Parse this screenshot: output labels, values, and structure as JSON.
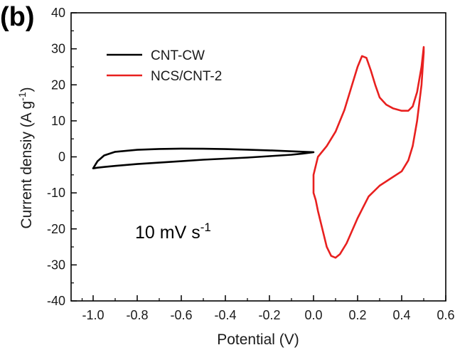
{
  "panel_label": "(b)",
  "chart_data": {
    "type": "line",
    "xlabel": "Potential (V)",
    "ylabel": {
      "main": "Current densiy (A g",
      "sup": "-1",
      "end": ")"
    },
    "xlim": [
      -1.1,
      0.6
    ],
    "ylim": [
      -40,
      40
    ],
    "x_ticks": [
      -1.0,
      -0.8,
      -0.6,
      -0.4,
      -0.2,
      0.0,
      0.2,
      0.4,
      0.6
    ],
    "x_tick_labels": [
      "-1.0",
      "-0.8",
      "-0.6",
      "-0.4",
      "-0.2",
      "0.0",
      "0.2",
      "0.4",
      "0.6"
    ],
    "y_ticks": [
      -40,
      -30,
      -20,
      -10,
      0,
      10,
      20,
      30,
      40
    ],
    "y_tick_labels": [
      "-40",
      "-30",
      "-20",
      "-10",
      "0",
      "10",
      "20",
      "30",
      "40"
    ],
    "grid": false,
    "legend_position": "top-left",
    "annotation": {
      "text": "10 mV s",
      "sup": "-1"
    },
    "series": [
      {
        "name": "CNT-CW",
        "color": "#000000",
        "points": [
          [
            0.0,
            1.3
          ],
          [
            -0.1,
            1.55
          ],
          [
            -0.2,
            1.8
          ],
          [
            -0.3,
            2.0
          ],
          [
            -0.4,
            2.15
          ],
          [
            -0.5,
            2.25
          ],
          [
            -0.6,
            2.3
          ],
          [
            -0.7,
            2.2
          ],
          [
            -0.8,
            1.95
          ],
          [
            -0.9,
            1.4
          ],
          [
            -0.95,
            0.4
          ],
          [
            -0.98,
            -1.2
          ],
          [
            -1.0,
            -3.2
          ],
          [
            -0.98,
            -3.0
          ],
          [
            -0.95,
            -2.8
          ],
          [
            -0.9,
            -2.5
          ],
          [
            -0.8,
            -2.0
          ],
          [
            -0.7,
            -1.6
          ],
          [
            -0.6,
            -1.2
          ],
          [
            -0.5,
            -0.8
          ],
          [
            -0.4,
            -0.5
          ],
          [
            -0.3,
            -0.2
          ],
          [
            -0.2,
            0.2
          ],
          [
            -0.1,
            0.6
          ],
          [
            -0.05,
            0.9
          ],
          [
            0.0,
            1.3
          ]
        ]
      },
      {
        "name": "NCS/CNT-2",
        "color": "#e8201f",
        "points": [
          [
            0.0,
            -10.0
          ],
          [
            0.0,
            -5.0
          ],
          [
            0.02,
            0.0
          ],
          [
            0.06,
            3.0
          ],
          [
            0.1,
            7.0
          ],
          [
            0.14,
            13.0
          ],
          [
            0.17,
            19.0
          ],
          [
            0.2,
            25.0
          ],
          [
            0.22,
            28.0
          ],
          [
            0.24,
            27.5
          ],
          [
            0.26,
            24.0
          ],
          [
            0.28,
            20.0
          ],
          [
            0.3,
            16.5
          ],
          [
            0.33,
            14.5
          ],
          [
            0.36,
            13.5
          ],
          [
            0.4,
            12.8
          ],
          [
            0.43,
            12.8
          ],
          [
            0.45,
            14.0
          ],
          [
            0.47,
            18.0
          ],
          [
            0.49,
            25.0
          ],
          [
            0.5,
            30.5
          ],
          [
            0.5,
            29.0
          ],
          [
            0.49,
            20.0
          ],
          [
            0.47,
            10.0
          ],
          [
            0.45,
            3.0
          ],
          [
            0.43,
            -1.0
          ],
          [
            0.4,
            -4.0
          ],
          [
            0.35,
            -6.0
          ],
          [
            0.3,
            -8.0
          ],
          [
            0.25,
            -11.0
          ],
          [
            0.2,
            -17.0
          ],
          [
            0.15,
            -24.0
          ],
          [
            0.12,
            -27.0
          ],
          [
            0.1,
            -28.0
          ],
          [
            0.08,
            -27.5
          ],
          [
            0.06,
            -25.0
          ],
          [
            0.04,
            -20.0
          ],
          [
            0.02,
            -15.0
          ],
          [
            0.01,
            -12.0
          ],
          [
            0.0,
            -10.0
          ]
        ]
      }
    ]
  }
}
